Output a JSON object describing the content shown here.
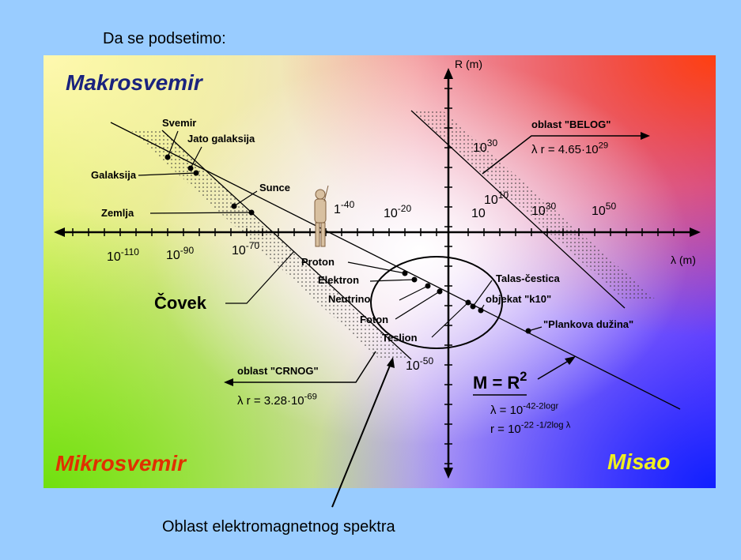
{
  "header": {
    "title": "Da se podsetimo:"
  },
  "quadrants": {
    "top_left": "Makrosvemir",
    "bottom_left": "Mikrosvemir",
    "bottom_right": "Misao"
  },
  "axes": {
    "y_label": "R (m)",
    "x_label": "λ (m)"
  },
  "scale_labels": [
    {
      "base": "10",
      "exp": "-110"
    },
    {
      "base": "10",
      "exp": "-90"
    },
    {
      "base": "10",
      "exp": "-70"
    },
    {
      "base": "1",
      "exp": "-40"
    },
    {
      "base": "10",
      "exp": "-20"
    },
    {
      "base": "10",
      "exp": ""
    },
    {
      "base": "10",
      "exp": "10"
    },
    {
      "base": "10",
      "exp": "30"
    },
    {
      "base": "10",
      "exp": "50"
    },
    {
      "base": "10",
      "exp": "30"
    },
    {
      "base": "10",
      "exp": "-50"
    }
  ],
  "objects": [
    "Svemir",
    "Jato galaksija",
    "Galaksija",
    "Sunce",
    "Zemlja",
    "Proton",
    "Elektron",
    "Neutrino",
    "Foton",
    "Teslion",
    "Talas-čestica",
    "objekat \"k10\"",
    "\"Plankova dužina\"",
    "Čovek"
  ],
  "regions": {
    "white": {
      "label": "oblast \"BELOG\"",
      "formula": "λ r = 4.65·10",
      "exp": "29"
    },
    "black": {
      "label": "oblast \"CRNOG\"",
      "formula": "λ r = 3.28·10",
      "exp": "-69"
    }
  },
  "law": {
    "base": "M = R",
    "exp": "2"
  },
  "formulas": [
    {
      "lhs": "λ = 10",
      "exp": "-42-2logr"
    },
    {
      "lhs": "r = 10",
      "exp": "-22 -1/2log λ"
    }
  ],
  "caption": "Oblast elektromagnetnog spektra"
}
